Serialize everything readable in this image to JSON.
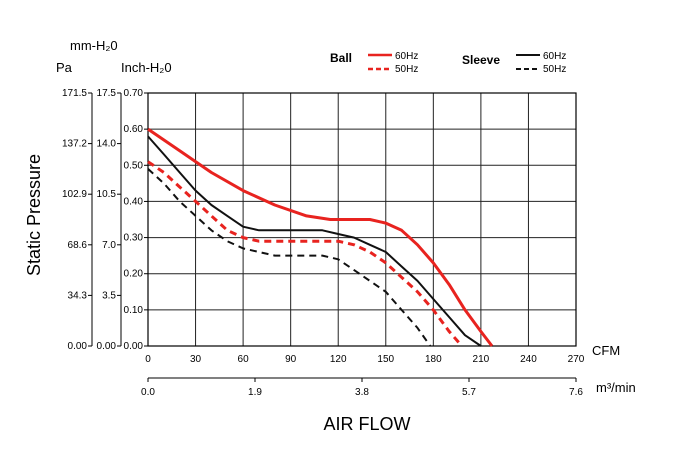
{
  "chart_data": {
    "type": "line",
    "title": "",
    "ylabel": "Static Pressure",
    "xlabel": "AIR FLOW",
    "xlim": [
      0,
      270
    ],
    "ylim": [
      0,
      0.7
    ],
    "grid": true,
    "legend_placement": "top-right",
    "x_axes": [
      {
        "unit": "CFM",
        "ticks": [
          "0",
          "30",
          "60",
          "90",
          "120",
          "150",
          "180",
          "210",
          "240",
          "270"
        ]
      },
      {
        "unit": "m³/min",
        "ticks": [
          "0.0",
          "1.9",
          "3.8",
          "5.7",
          "7.6"
        ]
      }
    ],
    "y_axes": [
      {
        "unit": "Inch-H₂0",
        "ticks": [
          "0.00",
          "0.10",
          "0.20",
          "0.30",
          "0.40",
          "0.50",
          "0.60",
          "0.70"
        ]
      },
      {
        "unit": "mm-H₂0",
        "ticks": [
          "0.00",
          "3.5",
          "7.0",
          "10.5",
          "14.0",
          "17.5"
        ]
      },
      {
        "unit": "Pa",
        "ticks": [
          "0.00",
          "34.3",
          "68.6",
          "102.9",
          "137.2",
          "171.5"
        ]
      }
    ],
    "legend": {
      "groups": [
        {
          "label": "Ball",
          "entries": [
            "60Hz",
            "50Hz"
          ]
        },
        {
          "label": "Sleeve",
          "entries": [
            "60Hz",
            "50Hz"
          ]
        }
      ]
    },
    "series": [
      {
        "name": "Ball 60Hz",
        "color": "#e8231f",
        "style": "solid",
        "x": [
          0,
          20,
          40,
          60,
          80,
          100,
          115,
          130,
          140,
          150,
          160,
          170,
          180,
          190,
          200,
          210,
          217
        ],
        "y": [
          0.6,
          0.54,
          0.48,
          0.43,
          0.39,
          0.36,
          0.35,
          0.35,
          0.35,
          0.34,
          0.32,
          0.28,
          0.23,
          0.17,
          0.1,
          0.04,
          0.0
        ]
      },
      {
        "name": "Ball 50Hz",
        "color": "#e8231f",
        "style": "dashed",
        "x": [
          0,
          10,
          20,
          30,
          40,
          50,
          60,
          70,
          80,
          90,
          100,
          110,
          120,
          130,
          140,
          150,
          160,
          170,
          180,
          190,
          198
        ],
        "y": [
          0.51,
          0.48,
          0.44,
          0.4,
          0.36,
          0.32,
          0.3,
          0.29,
          0.29,
          0.29,
          0.29,
          0.29,
          0.29,
          0.28,
          0.26,
          0.23,
          0.19,
          0.15,
          0.1,
          0.04,
          0.0
        ]
      },
      {
        "name": "Sleeve 60Hz",
        "color": "#111111",
        "style": "solid",
        "x": [
          0,
          10,
          20,
          30,
          40,
          50,
          60,
          70,
          80,
          90,
          100,
          110,
          120,
          130,
          140,
          150,
          160,
          170,
          180,
          190,
          200,
          210
        ],
        "y": [
          0.58,
          0.53,
          0.48,
          0.43,
          0.39,
          0.36,
          0.33,
          0.32,
          0.32,
          0.32,
          0.32,
          0.32,
          0.31,
          0.3,
          0.28,
          0.26,
          0.22,
          0.18,
          0.13,
          0.08,
          0.03,
          0.0
        ]
      },
      {
        "name": "Sleeve 50Hz",
        "color": "#111111",
        "style": "dashed",
        "x": [
          0,
          10,
          20,
          30,
          40,
          50,
          60,
          70,
          80,
          90,
          100,
          110,
          120,
          130,
          140,
          150,
          160,
          170,
          178
        ],
        "y": [
          0.49,
          0.45,
          0.4,
          0.36,
          0.32,
          0.29,
          0.27,
          0.26,
          0.25,
          0.25,
          0.25,
          0.25,
          0.24,
          0.21,
          0.18,
          0.15,
          0.1,
          0.05,
          0.0
        ]
      }
    ]
  }
}
